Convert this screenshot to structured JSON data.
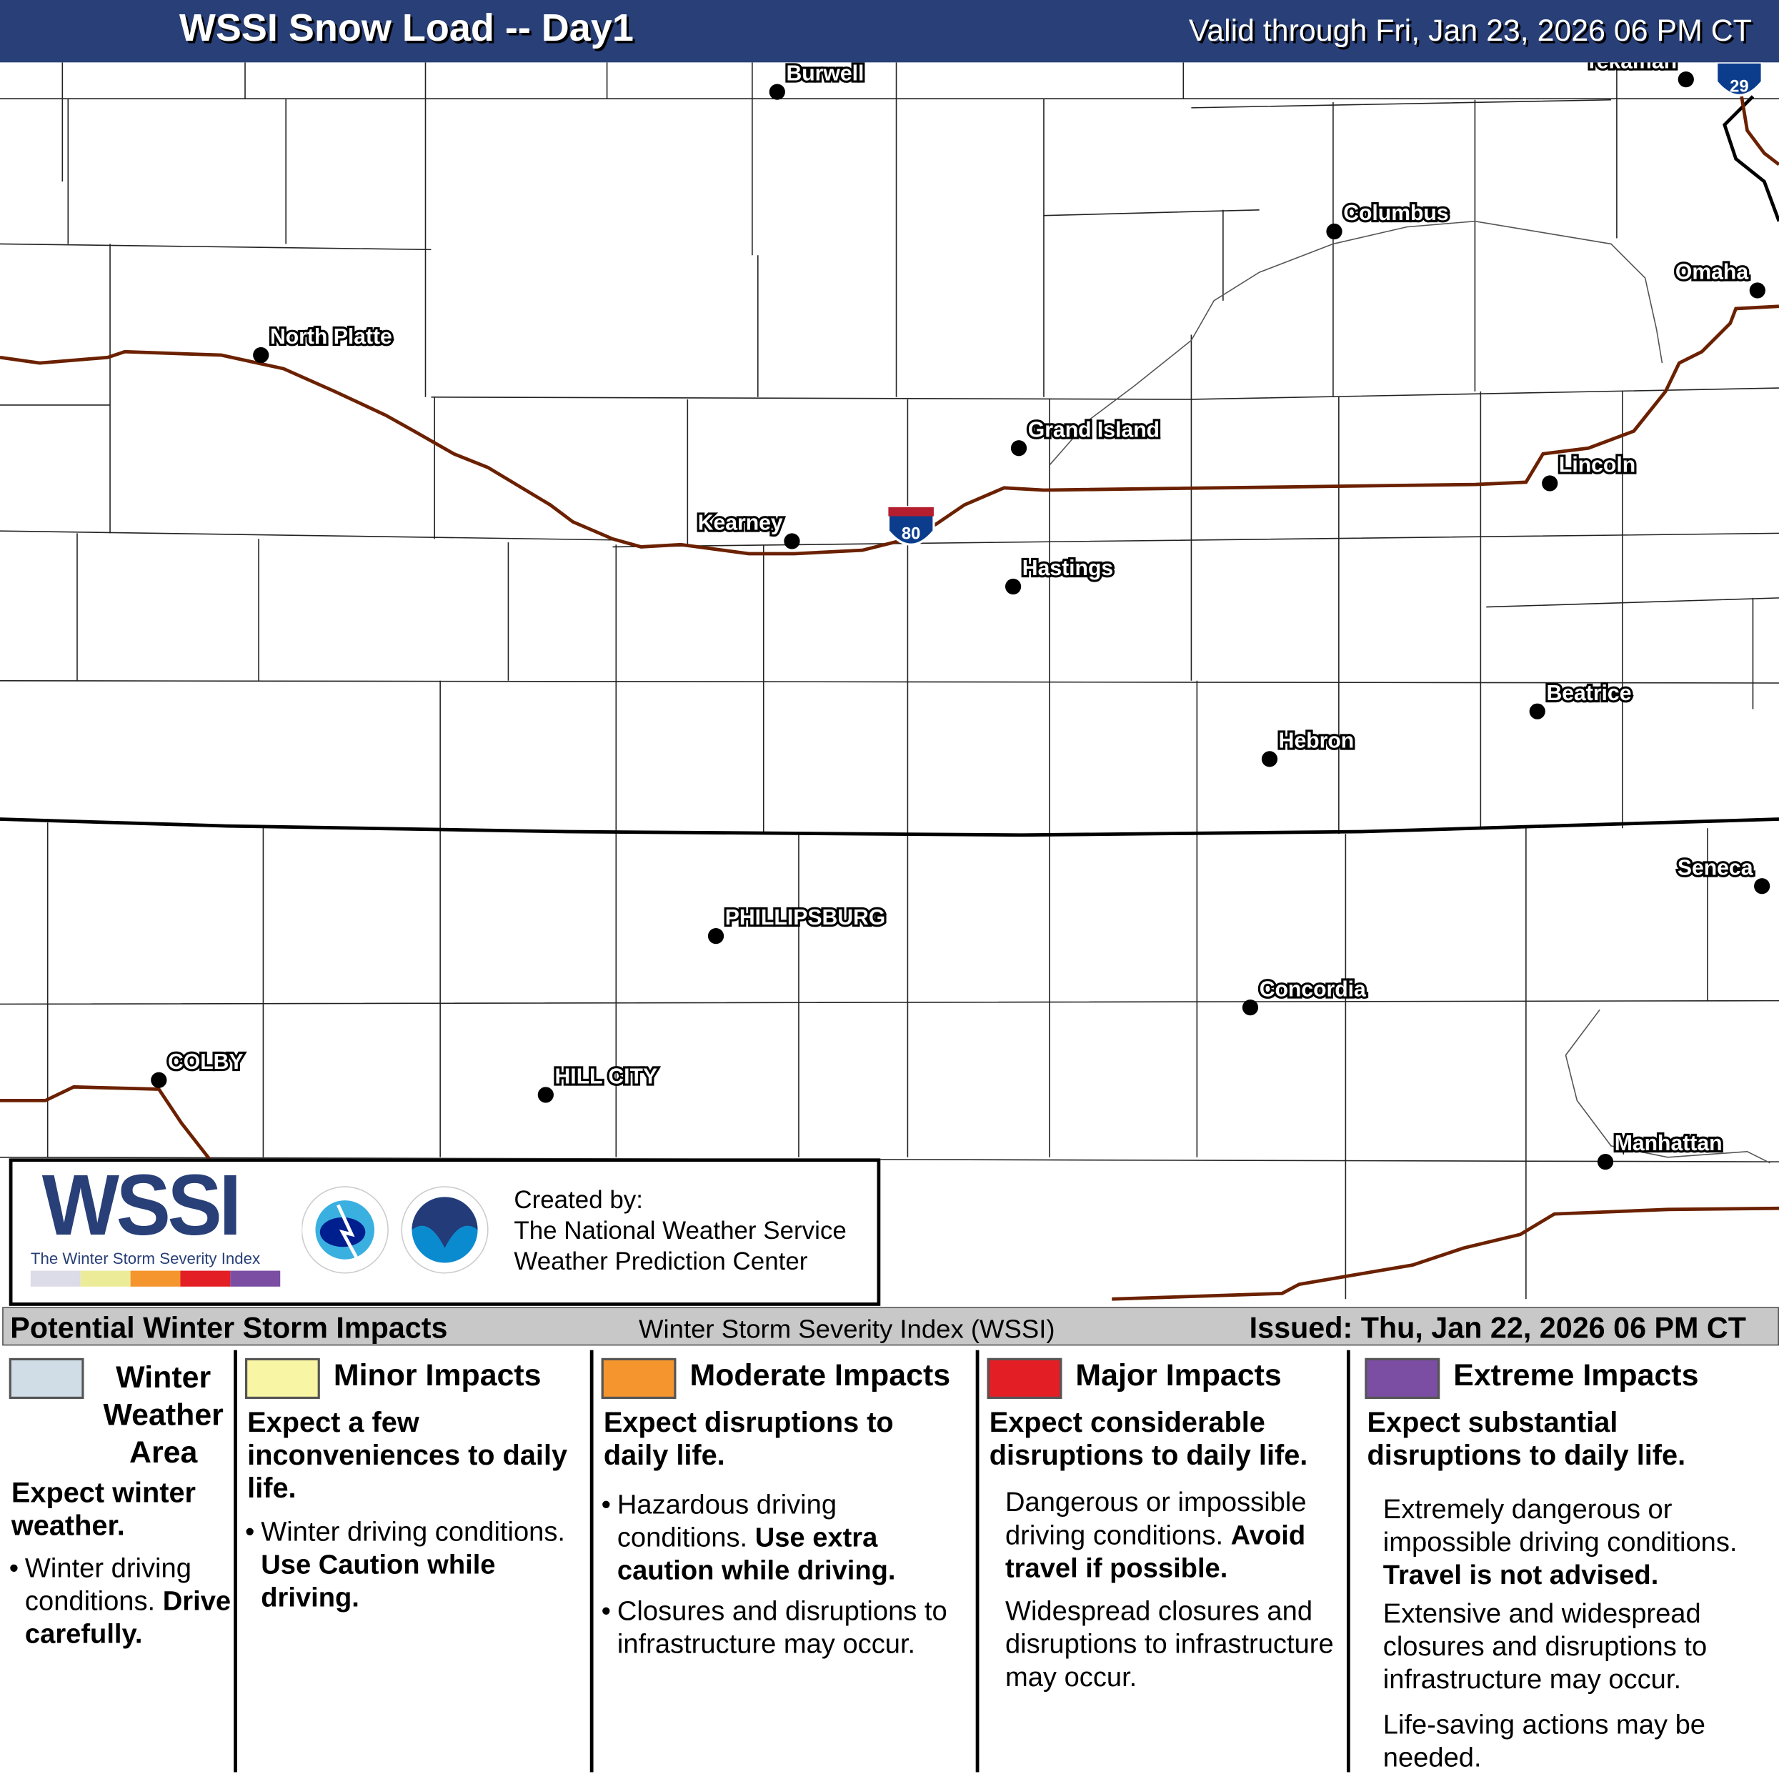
{
  "header": {
    "title": "WSSI Snow Load -- Day1",
    "valid": "Valid through Fri, Jan 23, 2026 06 PM CT"
  },
  "cities": [
    {
      "name": "Burwell"
    },
    {
      "name": "Tekamah"
    },
    {
      "name": "Columbus"
    },
    {
      "name": "Omaha"
    },
    {
      "name": "North Platte"
    },
    {
      "name": "Grand Island"
    },
    {
      "name": "Lincoln"
    },
    {
      "name": "Kearney"
    },
    {
      "name": "Hastings"
    },
    {
      "name": "Beatrice"
    },
    {
      "name": "Hebron"
    },
    {
      "name": "Seneca"
    },
    {
      "name": "PHILLIPSBURG"
    },
    {
      "name": "Concordia"
    },
    {
      "name": "COLBY"
    },
    {
      "name": "HILL CITY"
    },
    {
      "name": "Manhattan"
    }
  ],
  "interstates": {
    "i80": "80",
    "i29": "29"
  },
  "colors": {
    "header": "#283f77",
    "road": "#6b2100",
    "winter_weather": "#d0dde6",
    "minor": "#f8f5a4",
    "moderate": "#f5952e",
    "major": "#e31e25",
    "extreme": "#7b4ea3"
  },
  "logo": {
    "wordmark": "WSSI",
    "tagline": "The Winter Storm Severity Index",
    "created_by": "Created by:",
    "org1": "The National Weather Service",
    "org2": "Weather Prediction Center"
  },
  "legend": {
    "title": "Potential Winter Storm Impacts",
    "subtitle": "Winter Storm Severity Index (WSSI)",
    "issued": "Issued: Thu, Jan 22, 2026 06 PM CT",
    "categories": [
      {
        "name": "Winter Weather Area",
        "headline": "Expect winter weather.",
        "b1": "Winter driving conditions.",
        "b1_bold": "Drive carefully."
      },
      {
        "name": "Minor Impacts",
        "headline": "Expect a few inconveniences to daily life.",
        "b1": "Winter driving conditions.",
        "b1_bold": "Use Caution while driving."
      },
      {
        "name": "Moderate Impacts",
        "headline": "Expect disruptions to daily life.",
        "b1": "Hazardous driving conditions.",
        "b1_bold": "Use extra caution while driving.",
        "b2": "Closures and disruptions to infrastructure may occur."
      },
      {
        "name": "Major Impacts",
        "headline": "Expect considerable disruptions to daily life.",
        "b1": "Dangerous or impossible driving conditions.",
        "b1_bold": "Avoid travel if possible.",
        "b2": "Widespread closures and disruptions to infrastructure may occur."
      },
      {
        "name": "Extreme Impacts",
        "headline": "Expect substantial disruptions to daily life.",
        "b1": "Extremely dangerous or impossible driving conditions.",
        "b1_bold": "Travel is not advised.",
        "b2": "Extensive and widespread closures and disruptions to infrastructure may occur.",
        "b3": "Life-saving actions may be needed."
      }
    ]
  }
}
